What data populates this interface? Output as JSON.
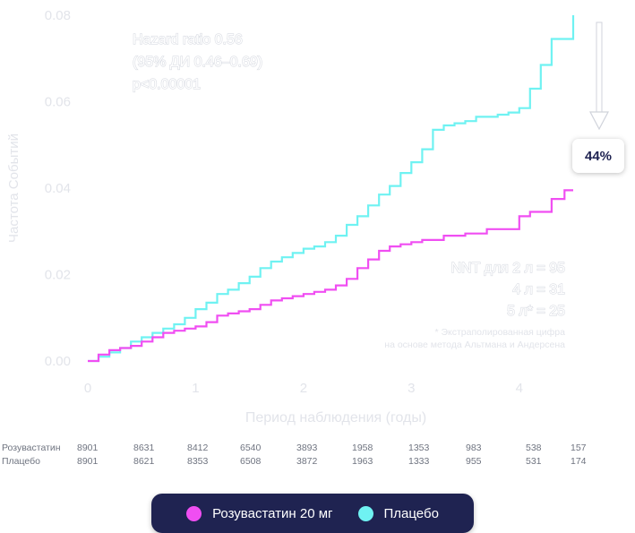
{
  "chart_data": {
    "type": "line",
    "xlabel": "Период наблюдения (годы)",
    "ylabel": "Частота Событий",
    "xlim": [
      0,
      4.55
    ],
    "ylim": [
      0,
      0.08
    ],
    "x_ticks": [
      "0",
      "1",
      "2",
      "3",
      "4"
    ],
    "y_ticks": [
      "0.00",
      "0.02",
      "0.04",
      "0.06",
      "0.08"
    ],
    "grid": false,
    "series": [
      {
        "name": "Розувастатин 20 мг",
        "color": "#f04ef2",
        "x": [
          0,
          0.1,
          0.2,
          0.3,
          0.4,
          0.5,
          0.6,
          0.7,
          0.8,
          0.9,
          1.0,
          1.1,
          1.2,
          1.3,
          1.4,
          1.5,
          1.6,
          1.7,
          1.8,
          1.9,
          2.0,
          2.1,
          2.2,
          2.3,
          2.4,
          2.5,
          2.6,
          2.7,
          2.8,
          2.9,
          3.0,
          3.1,
          3.2,
          3.3,
          3.4,
          3.5,
          3.6,
          3.7,
          3.8,
          3.9,
          4.0,
          4.1,
          4.2,
          4.3,
          4.42,
          4.5
        ],
        "y": [
          0,
          0.0015,
          0.0025,
          0.003,
          0.0035,
          0.0045,
          0.0055,
          0.0065,
          0.007,
          0.0075,
          0.008,
          0.009,
          0.0105,
          0.011,
          0.0115,
          0.012,
          0.013,
          0.014,
          0.0145,
          0.015,
          0.0155,
          0.016,
          0.0165,
          0.0175,
          0.019,
          0.0215,
          0.0235,
          0.0255,
          0.0265,
          0.027,
          0.0275,
          0.028,
          0.028,
          0.029,
          0.029,
          0.0295,
          0.0295,
          0.0305,
          0.0305,
          0.0305,
          0.0335,
          0.0345,
          0.0345,
          0.0375,
          0.0395,
          0.0395
        ]
      },
      {
        "name": "Плацебо",
        "color": "#6ff2f2",
        "x": [
          0,
          0.1,
          0.2,
          0.3,
          0.4,
          0.5,
          0.6,
          0.7,
          0.8,
          0.9,
          1.0,
          1.1,
          1.2,
          1.3,
          1.4,
          1.5,
          1.6,
          1.7,
          1.8,
          1.9,
          2.0,
          2.1,
          2.2,
          2.3,
          2.4,
          2.5,
          2.6,
          2.7,
          2.8,
          2.9,
          3.0,
          3.1,
          3.2,
          3.3,
          3.4,
          3.5,
          3.6,
          3.7,
          3.8,
          3.9,
          4.0,
          4.1,
          4.2,
          4.3,
          4.42,
          4.5
        ],
        "y": [
          0,
          0.001,
          0.002,
          0.003,
          0.0045,
          0.0055,
          0.0065,
          0.0075,
          0.0085,
          0.01,
          0.012,
          0.0135,
          0.0155,
          0.0165,
          0.018,
          0.0195,
          0.0215,
          0.023,
          0.024,
          0.025,
          0.026,
          0.0265,
          0.0275,
          0.029,
          0.0315,
          0.0335,
          0.036,
          0.0385,
          0.0405,
          0.0435,
          0.046,
          0.049,
          0.0535,
          0.0545,
          0.055,
          0.0555,
          0.0565,
          0.0565,
          0.057,
          0.0575,
          0.0585,
          0.063,
          0.0685,
          0.0745,
          0.0745,
          0.08
        ]
      }
    ],
    "annotations": {
      "hazard": [
        "Hazard ratio 0.56",
        "(95% ДИ 0.46–0.69)",
        "p<0.00001"
      ],
      "nnt": [
        "NNT для 2 л = 95",
        "4 л = 31",
        "5 л* = 25"
      ],
      "footnote": [
        "* Экстраполированная цифра",
        "на основе метода Альтмана и Андерсена"
      ],
      "reduction_badge": "44%"
    },
    "at_risk_table": {
      "rows": [
        {
          "label": "Розувастатин",
          "values": [
            "8901",
            "8631",
            "8412",
            "6540",
            "3893",
            "1958",
            "1353",
            "983",
            "538",
            "157"
          ]
        },
        {
          "label": "Плацебо",
          "values": [
            "8901",
            "8621",
            "8353",
            "6508",
            "3872",
            "1963",
            "1333",
            "955",
            "531",
            "174"
          ]
        }
      ]
    }
  },
  "legend": {
    "items": [
      {
        "label": "Розувастатин 20 мг",
        "color": "#f04ef2"
      },
      {
        "label": "Плацебо",
        "color": "#6ff2f2"
      }
    ]
  }
}
